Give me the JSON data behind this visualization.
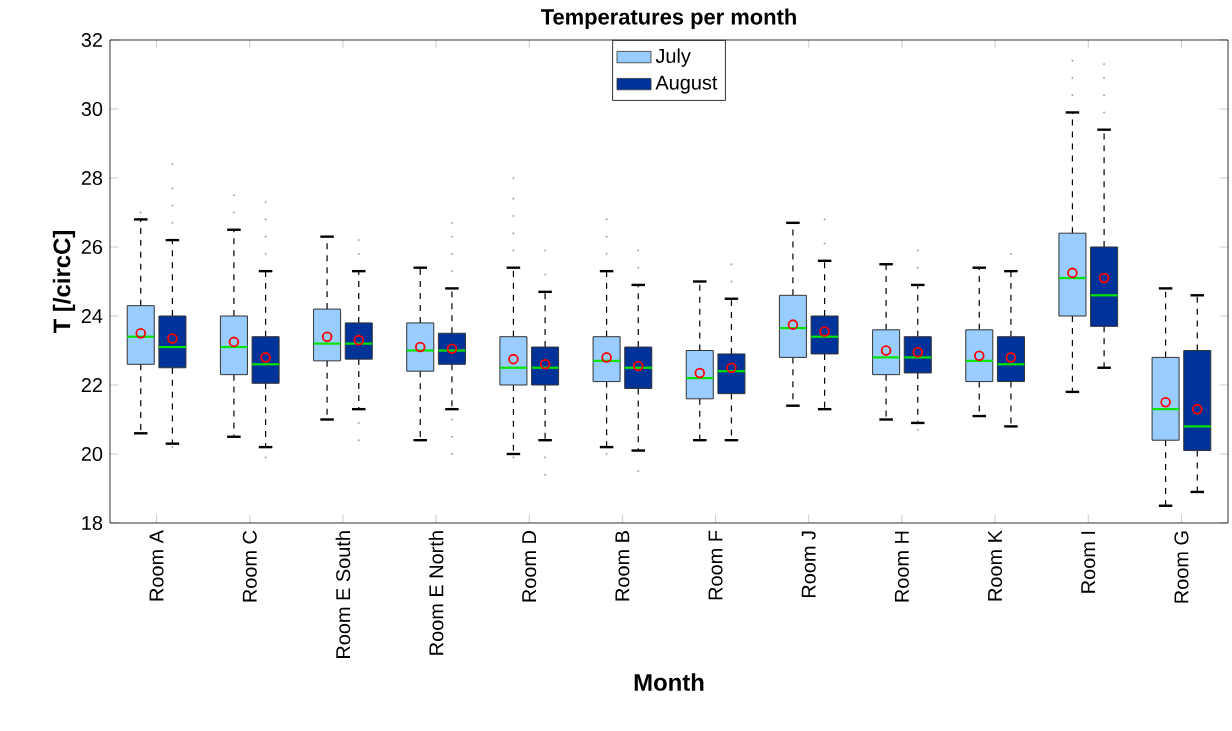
{
  "chart_data": {
    "type": "box",
    "title": "Temperatures per month",
    "xlabel": "Month",
    "ylabel": "T [/circC]",
    "categories": [
      "Room A",
      "Room C",
      "Room E South",
      "Room E North",
      "Room D",
      "Room B",
      "Room F",
      "Room J",
      "Room H",
      "Room K",
      "Room I",
      "Room G"
    ],
    "ylim": [
      18,
      32
    ],
    "yticks": [
      18,
      20,
      22,
      24,
      26,
      28,
      30,
      32
    ],
    "legend": "top",
    "line_style": "dashed",
    "series": [
      {
        "name": "July",
        "color": "#99ccff",
        "boxes": [
          {
            "low": 20.6,
            "q1": 22.6,
            "median": 23.4,
            "q3": 24.3,
            "high": 26.8,
            "mean": 23.5,
            "outliers": [
              27.0
            ]
          },
          {
            "low": 20.5,
            "q1": 22.3,
            "median": 23.1,
            "q3": 24.0,
            "high": 26.5,
            "mean": 23.25,
            "outliers": [
              27.0,
              27.5
            ]
          },
          {
            "low": 21.0,
            "q1": 22.7,
            "median": 23.2,
            "q3": 24.2,
            "high": 26.3,
            "mean": 23.4
          },
          {
            "low": 20.4,
            "q1": 22.4,
            "median": 23.0,
            "q3": 23.8,
            "high": 25.4,
            "mean": 23.1
          },
          {
            "low": 20.0,
            "q1": 22.0,
            "median": 22.5,
            "q3": 23.4,
            "high": 25.4,
            "mean": 22.75,
            "outliers": [
              19.9,
              25.9,
              26.4,
              26.9,
              27.4,
              28.0
            ]
          },
          {
            "low": 20.2,
            "q1": 22.1,
            "median": 22.7,
            "q3": 23.4,
            "high": 25.3,
            "mean": 22.8,
            "outliers": [
              20.0,
              25.8,
              26.3,
              26.8
            ]
          },
          {
            "low": 20.4,
            "q1": 21.6,
            "median": 22.2,
            "q3": 23.0,
            "high": 25.0,
            "mean": 22.35
          },
          {
            "low": 21.4,
            "q1": 22.8,
            "median": 23.65,
            "q3": 24.6,
            "high": 26.7,
            "mean": 23.75
          },
          {
            "low": 21.0,
            "q1": 22.3,
            "median": 22.8,
            "q3": 23.6,
            "high": 25.5,
            "mean": 23.0
          },
          {
            "low": 21.1,
            "q1": 22.1,
            "median": 22.7,
            "q3": 23.6,
            "high": 25.4,
            "mean": 22.85
          },
          {
            "low": 21.8,
            "q1": 24.0,
            "median": 25.1,
            "q3": 26.4,
            "high": 29.9,
            "mean": 25.25,
            "outliers": [
              30.4,
              30.9,
              31.4
            ]
          },
          {
            "low": 18.5,
            "q1": 20.4,
            "median": 21.3,
            "q3": 22.8,
            "high": 24.8,
            "mean": 21.5
          }
        ]
      },
      {
        "name": "August",
        "color": "#003399",
        "boxes": [
          {
            "low": 20.3,
            "q1": 22.5,
            "median": 23.1,
            "q3": 24.0,
            "high": 26.2,
            "mean": 23.35,
            "outliers": [
              20.2,
              26.7,
              27.2,
              27.7,
              28.4
            ]
          },
          {
            "low": 20.2,
            "q1": 22.05,
            "median": 22.6,
            "q3": 23.4,
            "high": 25.3,
            "mean": 22.8,
            "outliers": [
              19.9,
              25.8,
              26.3,
              26.8,
              27.3
            ]
          },
          {
            "low": 21.3,
            "q1": 22.75,
            "median": 23.2,
            "q3": 23.8,
            "high": 25.3,
            "mean": 23.3,
            "outliers": [
              20.4,
              20.9,
              25.8,
              26.2
            ]
          },
          {
            "low": 21.3,
            "q1": 22.6,
            "median": 23.0,
            "q3": 23.5,
            "high": 24.8,
            "mean": 23.05,
            "outliers": [
              20.0,
              20.5,
              21.0,
              25.3,
              25.8,
              26.3,
              26.7
            ]
          },
          {
            "low": 20.4,
            "q1": 22.0,
            "median": 22.5,
            "q3": 23.1,
            "high": 24.7,
            "mean": 22.6,
            "outliers": [
              19.4,
              19.9,
              25.2,
              25.9
            ]
          },
          {
            "low": 20.1,
            "q1": 21.9,
            "median": 22.5,
            "q3": 23.1,
            "high": 24.9,
            "mean": 22.55,
            "outliers": [
              19.5,
              25.4,
              25.9
            ]
          },
          {
            "low": 20.4,
            "q1": 21.75,
            "median": 22.4,
            "q3": 22.9,
            "high": 24.5,
            "mean": 22.5,
            "outliers": [
              25.0,
              25.5
            ]
          },
          {
            "low": 21.3,
            "q1": 22.9,
            "median": 23.4,
            "q3": 24.0,
            "high": 25.6,
            "mean": 23.55,
            "outliers": [
              26.1,
              26.8
            ]
          },
          {
            "low": 20.9,
            "q1": 22.35,
            "median": 22.8,
            "q3": 23.4,
            "high": 24.9,
            "mean": 22.95,
            "outliers": [
              20.7,
              25.4,
              25.9
            ]
          },
          {
            "low": 20.8,
            "q1": 22.1,
            "median": 22.6,
            "q3": 23.4,
            "high": 25.3,
            "mean": 22.8,
            "outliers": [
              25.8
            ]
          },
          {
            "low": 22.5,
            "q1": 23.7,
            "median": 24.6,
            "q3": 26.0,
            "high": 29.4,
            "mean": 25.1,
            "outliers": [
              29.9,
              30.4,
              30.9,
              31.3
            ]
          },
          {
            "low": 18.9,
            "q1": 20.1,
            "median": 20.8,
            "q3": 23.0,
            "high": 24.6,
            "mean": 21.3
          }
        ]
      }
    ]
  }
}
